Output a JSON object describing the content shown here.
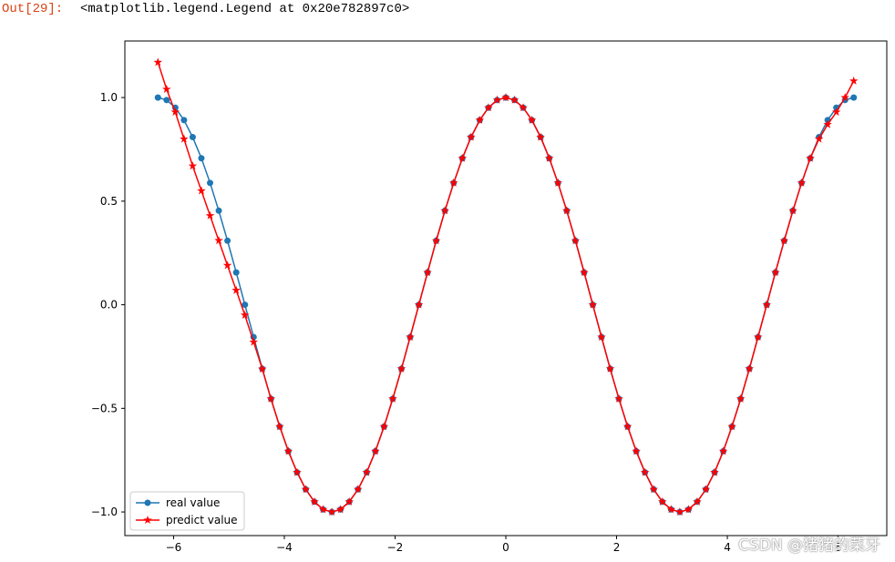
{
  "output_prompt": "Out[29]:",
  "output_text": "<matplotlib.legend.Legend at 0x20e782897c0>",
  "watermark": "CSDN @猪猪的菜牙",
  "chart_data": {
    "type": "line",
    "x": [
      -6.283,
      -6.126,
      -5.969,
      -5.812,
      -5.655,
      -5.498,
      -5.341,
      -5.184,
      -5.027,
      -4.869,
      -4.712,
      -4.555,
      -4.398,
      -4.241,
      -4.084,
      -3.927,
      -3.77,
      -3.613,
      -3.456,
      -3.299,
      -3.142,
      -2.985,
      -2.827,
      -2.67,
      -2.513,
      -2.356,
      -2.199,
      -2.042,
      -1.885,
      -1.728,
      -1.571,
      -1.414,
      -1.257,
      -1.1,
      -0.942,
      -0.785,
      -0.628,
      -0.471,
      -0.314,
      -0.157,
      0,
      0.157,
      0.314,
      0.471,
      0.628,
      0.785,
      0.942,
      1.1,
      1.257,
      1.414,
      1.571,
      1.728,
      1.885,
      2.042,
      2.199,
      2.356,
      2.513,
      2.67,
      2.827,
      2.985,
      3.142,
      3.299,
      3.456,
      3.613,
      3.77,
      3.927,
      4.084,
      4.241,
      4.398,
      4.555,
      4.712,
      4.869,
      5.027,
      5.184,
      5.341,
      5.498,
      5.655,
      5.812,
      5.969,
      6.126,
      6.283
    ],
    "series": [
      {
        "name": "real value",
        "color": "#1f77b4",
        "marker": "circle",
        "values": [
          1,
          0.988,
          0.951,
          0.891,
          0.809,
          0.707,
          0.588,
          0.454,
          0.309,
          0.156,
          0,
          -0.156,
          -0.309,
          -0.454,
          -0.588,
          -0.707,
          -0.809,
          -0.891,
          -0.951,
          -0.988,
          -1,
          -0.988,
          -0.951,
          -0.891,
          -0.809,
          -0.707,
          -0.588,
          -0.454,
          -0.309,
          -0.156,
          0,
          0.156,
          0.309,
          0.454,
          0.588,
          0.707,
          0.809,
          0.891,
          0.951,
          0.988,
          1,
          0.988,
          0.951,
          0.891,
          0.809,
          0.707,
          0.588,
          0.454,
          0.309,
          0.156,
          0,
          -0.156,
          -0.309,
          -0.454,
          -0.588,
          -0.707,
          -0.809,
          -0.891,
          -0.951,
          -0.988,
          -1,
          -0.988,
          -0.951,
          -0.891,
          -0.809,
          -0.707,
          -0.588,
          -0.454,
          -0.309,
          -0.156,
          0,
          0.156,
          0.309,
          0.454,
          0.588,
          0.707,
          0.809,
          0.891,
          0.951,
          0.988,
          1
        ]
      },
      {
        "name": "predict value",
        "color": "#ff0000",
        "marker": "star",
        "values": [
          1.17,
          1.04,
          0.93,
          0.8,
          0.67,
          0.55,
          0.43,
          0.31,
          0.19,
          0.07,
          -0.05,
          -0.18,
          -0.31,
          -0.454,
          -0.588,
          -0.707,
          -0.809,
          -0.891,
          -0.951,
          -0.988,
          -1,
          -0.988,
          -0.951,
          -0.891,
          -0.809,
          -0.707,
          -0.588,
          -0.454,
          -0.309,
          -0.156,
          0,
          0.156,
          0.309,
          0.454,
          0.588,
          0.707,
          0.809,
          0.891,
          0.951,
          0.988,
          1,
          0.988,
          0.951,
          0.891,
          0.809,
          0.707,
          0.588,
          0.454,
          0.309,
          0.156,
          0,
          -0.156,
          -0.309,
          -0.454,
          -0.588,
          -0.707,
          -0.809,
          -0.891,
          -0.951,
          -0.988,
          -1,
          -0.988,
          -0.951,
          -0.891,
          -0.809,
          -0.707,
          -0.588,
          -0.454,
          -0.309,
          -0.156,
          0,
          0.156,
          0.309,
          0.454,
          0.588,
          0.707,
          0.8,
          0.87,
          0.93,
          1.0,
          1.08
        ]
      }
    ],
    "xlim": [
      -6.88,
      6.88
    ],
    "ylim": [
      -1.114,
      1.273
    ],
    "xticks": [
      {
        "value": -6,
        "label": "−6"
      },
      {
        "value": -4,
        "label": "−4"
      },
      {
        "value": -2,
        "label": "−2"
      },
      0,
      2,
      4,
      6
    ],
    "yticks": [
      {
        "value": -1,
        "label": "−1.0"
      },
      {
        "value": -0.5,
        "label": "−0.5"
      },
      {
        "value": 0,
        "label": "0.0"
      },
      {
        "value": 0.5,
        "label": "0.5"
      },
      {
        "value": 1,
        "label": "1.0"
      }
    ],
    "grid": false,
    "legend": "lower left"
  }
}
